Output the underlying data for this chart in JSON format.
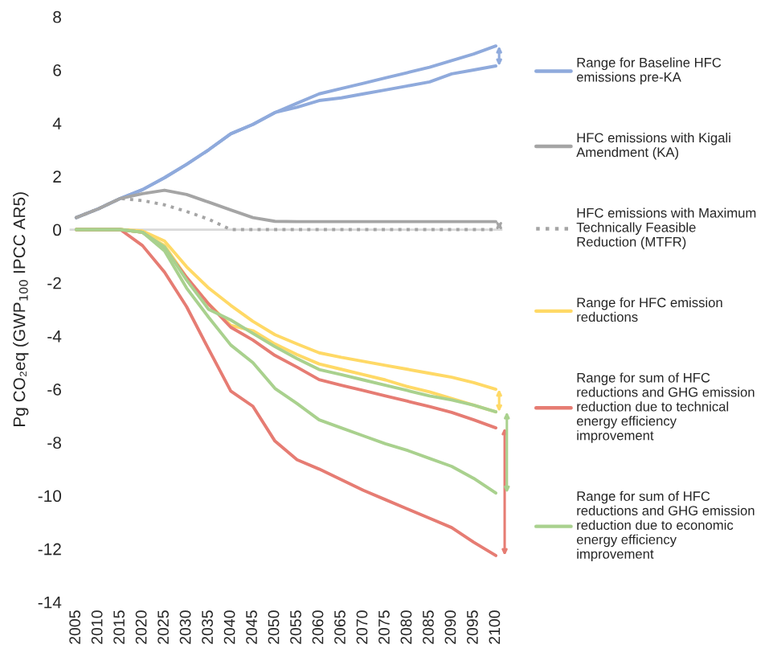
{
  "chart_data": {
    "type": "line",
    "ylabel": "Pg CO₂eq (GWP$_{100}$ IPCC AR5)",
    "categories": [
      "2005",
      "2010",
      "2015",
      "2020",
      "2025",
      "2030",
      "2035",
      "2040",
      "2045",
      "2050",
      "2055",
      "2060",
      "2065",
      "2070",
      "2075",
      "2080",
      "2085",
      "2090",
      "2095",
      "2100"
    ],
    "ylim": [
      -14,
      8
    ],
    "yticks": [
      -14,
      -12,
      -10,
      -8,
      -6,
      -4,
      -2,
      0,
      2,
      4,
      6,
      8
    ],
    "grid": false,
    "legend": "right",
    "marker": "none",
    "ref_lines": [
      {
        "axis": "y",
        "value": 0,
        "color": "#d9d9d9"
      }
    ],
    "series": [
      {
        "name": "Range for Baseline HFC emissions pre-KA",
        "color": "#8faadc",
        "values": [
          0.45,
          0.78,
          1.17,
          1.5,
          1.95,
          2.45,
          3.0,
          3.6,
          3.95,
          4.4,
          4.75,
          5.1,
          5.3,
          5.5,
          5.7,
          5.9,
          6.1,
          6.35,
          6.6,
          6.9
        ]
      },
      {
        "color": "#8faadc",
        "values": [
          0.45,
          0.78,
          1.17,
          1.5,
          1.95,
          2.45,
          3.0,
          3.6,
          3.95,
          4.4,
          4.6,
          4.85,
          4.95,
          5.1,
          5.25,
          5.4,
          5.55,
          5.85,
          6.0,
          6.15
        ]
      },
      {
        "name": "HFC emissions with Kigali Amendment (KA)",
        "color": "#a5a5a5",
        "values": [
          0.45,
          0.78,
          1.17,
          1.35,
          1.48,
          1.32,
          1.03,
          0.74,
          0.45,
          0.31,
          0.3,
          0.3,
          0.3,
          0.3,
          0.3,
          0.3,
          0.3,
          0.3,
          0.3,
          0.3
        ]
      },
      {
        "name": "HFC emissions with Maximum Technically Feasible Reduction (MTFR)",
        "color": "#a5a5a5",
        "line_style": "dotted",
        "values": [
          0.45,
          0.78,
          1.17,
          1.09,
          0.93,
          0.68,
          0.39,
          0,
          0,
          0,
          0,
          0,
          0,
          0,
          0,
          0,
          0,
          0,
          0,
          0
        ]
      },
      {
        "name": "Range for HFC emission reductions",
        "color": "#ffd966",
        "values": [
          0,
          0,
          0,
          -0.05,
          -0.43,
          -1.4,
          -2.2,
          -2.85,
          -3.45,
          -3.95,
          -4.3,
          -4.63,
          -4.8,
          -4.95,
          -5.1,
          -5.25,
          -5.4,
          -5.55,
          -5.75,
          -6.0
        ]
      },
      {
        "color": "#ffd966",
        "values": [
          0,
          0,
          0,
          -0.1,
          -0.6,
          -1.8,
          -2.8,
          -3.6,
          -3.8,
          -4.3,
          -4.7,
          -5.05,
          -5.25,
          -5.45,
          -5.65,
          -5.9,
          -6.1,
          -6.35,
          -6.6,
          -6.85
        ]
      },
      {
        "name": "Range for sum of HFC reductions and GHG emission reduction due to technical energy efficiency improvement",
        "color": "#e67c73",
        "values": [
          0,
          0,
          0,
          -0.1,
          -0.7,
          -1.8,
          -2.8,
          -3.67,
          -4.15,
          -4.73,
          -5.17,
          -5.64,
          -5.85,
          -6.05,
          -6.25,
          -6.45,
          -6.65,
          -6.87,
          -7.15,
          -7.45
        ]
      },
      {
        "color": "#e67c73",
        "values": [
          0,
          0,
          0,
          -0.6,
          -1.6,
          -2.9,
          -4.5,
          -6.07,
          -6.64,
          -7.95,
          -8.65,
          -9.0,
          -9.4,
          -9.8,
          -10.15,
          -10.5,
          -10.85,
          -11.2,
          -11.75,
          -12.25
        ]
      },
      {
        "name": "Range for sum of HFC reductions and GHG emission reduction due to economic energy efficiency improvement",
        "color": "#a9d18e",
        "values": [
          0,
          0,
          0,
          -0.1,
          -0.65,
          -1.9,
          -3.0,
          -3.4,
          -3.9,
          -4.4,
          -4.85,
          -5.26,
          -5.45,
          -5.65,
          -5.85,
          -6.05,
          -6.25,
          -6.4,
          -6.6,
          -6.85
        ]
      },
      {
        "color": "#a9d18e",
        "values": [
          0,
          0,
          0,
          -0.1,
          -0.8,
          -2.2,
          -3.3,
          -4.34,
          -5.0,
          -5.97,
          -6.54,
          -7.15,
          -7.45,
          -7.75,
          -8.05,
          -8.3,
          -8.6,
          -8.9,
          -9.35,
          -9.9
        ]
      }
    ]
  }
}
